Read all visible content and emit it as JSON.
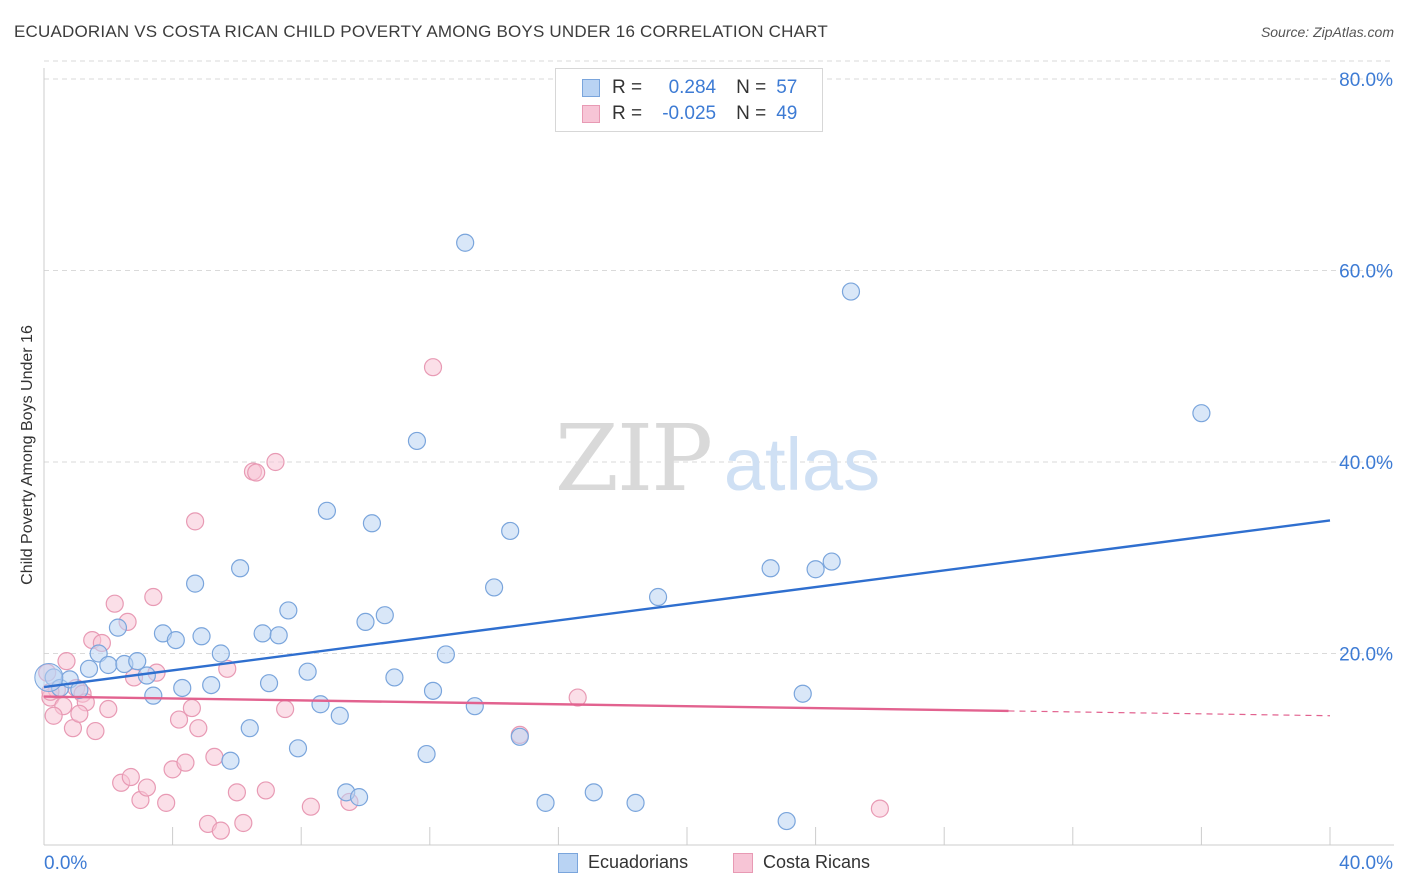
{
  "title": "ECUADORIAN VS COSTA RICAN CHILD POVERTY AMONG BOYS UNDER 16 CORRELATION CHART",
  "source": "Source: ZipAtlas.com",
  "watermark": {
    "zip": "ZIP",
    "atlas": "atlas"
  },
  "legend": {
    "rows": [
      {
        "r_label": "R =",
        "r_value": "0.284",
        "n_label": "N =",
        "n_value": "57"
      },
      {
        "r_label": "R =",
        "r_value": "-0.025",
        "n_label": "N =",
        "n_value": "49"
      }
    ]
  },
  "colors": {
    "blue_fill": "#b9d3f3",
    "blue_stroke": "#7aa5dc",
    "blue_line": "#2f6fcf",
    "pink_fill": "#f7c5d6",
    "pink_stroke": "#e89ab4",
    "pink_line": "#e2628f",
    "tick_label": "#3d7bd4",
    "grid": "#dadada"
  },
  "chart_data": {
    "type": "scatter",
    "title": "ECUADORIAN VS COSTA RICAN CHILD POVERTY AMONG BOYS UNDER 16 CORRELATION CHART",
    "xlabel": "",
    "ylabel": "Child Poverty Among Boys Under 16",
    "xlim": [
      0,
      40
    ],
    "ylim": [
      0,
      80
    ],
    "x_tick_labels": [
      "0.0%",
      "40.0%"
    ],
    "y_ticks": [
      20,
      40,
      60,
      80
    ],
    "y_tick_labels": [
      "20.0%",
      "40.0%",
      "60.0%",
      "80.0%"
    ],
    "legend_position": "bottom-center",
    "series": [
      {
        "name": "Ecuadorians",
        "r": 0.284,
        "n": 57,
        "trend": {
          "x0": 0,
          "y0": 16.5,
          "x1": 40,
          "y1": 33.9
        },
        "points": [
          [
            0.3,
            17.5
          ],
          [
            0.5,
            16.4
          ],
          [
            0.8,
            17.3
          ],
          [
            1.1,
            16.2
          ],
          [
            1.4,
            18.4
          ],
          [
            1.7,
            20.0
          ],
          [
            2.0,
            18.8
          ],
          [
            2.3,
            22.7
          ],
          [
            2.5,
            18.9
          ],
          [
            2.9,
            19.2
          ],
          [
            3.2,
            17.7
          ],
          [
            3.4,
            15.6
          ],
          [
            3.7,
            22.1
          ],
          [
            4.1,
            21.4
          ],
          [
            4.3,
            16.4
          ],
          [
            4.7,
            27.3
          ],
          [
            4.9,
            21.8
          ],
          [
            5.2,
            16.7
          ],
          [
            5.5,
            20.0
          ],
          [
            5.8,
            8.8
          ],
          [
            6.1,
            28.9
          ],
          [
            6.4,
            12.2
          ],
          [
            6.8,
            22.1
          ],
          [
            7.0,
            16.9
          ],
          [
            7.3,
            21.9
          ],
          [
            7.6,
            24.5
          ],
          [
            7.9,
            10.1
          ],
          [
            8.2,
            18.1
          ],
          [
            8.6,
            14.7
          ],
          [
            8.8,
            34.9
          ],
          [
            9.2,
            13.5
          ],
          [
            9.4,
            5.5
          ],
          [
            9.8,
            5.0
          ],
          [
            10.0,
            23.3
          ],
          [
            10.2,
            33.6
          ],
          [
            10.6,
            24.0
          ],
          [
            10.9,
            17.5
          ],
          [
            11.6,
            42.2
          ],
          [
            11.9,
            9.5
          ],
          [
            12.1,
            16.1
          ],
          [
            12.5,
            19.9
          ],
          [
            13.1,
            62.9
          ],
          [
            13.4,
            14.5
          ],
          [
            14.0,
            26.9
          ],
          [
            14.5,
            32.8
          ],
          [
            14.8,
            11.3
          ],
          [
            15.6,
            4.4
          ],
          [
            17.1,
            5.5
          ],
          [
            18.4,
            4.4
          ],
          [
            19.1,
            25.9
          ],
          [
            22.6,
            28.9
          ],
          [
            23.1,
            2.5
          ],
          [
            23.6,
            15.8
          ],
          [
            24.0,
            28.8
          ],
          [
            24.5,
            29.6
          ],
          [
            25.1,
            57.8
          ],
          [
            36.0,
            45.1
          ]
        ]
      },
      {
        "name": "Costa Ricans",
        "r": -0.025,
        "n": 49,
        "trend": {
          "x0": 0,
          "y0": 15.5,
          "x1": 30,
          "y1": 14.0,
          "dash_to_x": 40,
          "dash_to_y": 13.5
        },
        "points": [
          [
            0.1,
            18.0
          ],
          [
            0.2,
            15.4
          ],
          [
            0.4,
            16.2
          ],
          [
            0.6,
            14.5
          ],
          [
            0.7,
            19.2
          ],
          [
            0.9,
            12.2
          ],
          [
            1.0,
            16.4
          ],
          [
            1.2,
            15.8
          ],
          [
            1.3,
            14.9
          ],
          [
            1.5,
            21.4
          ],
          [
            1.6,
            11.9
          ],
          [
            1.8,
            21.1
          ],
          [
            2.0,
            14.2
          ],
          [
            2.2,
            25.2
          ],
          [
            2.4,
            6.5
          ],
          [
            2.6,
            23.3
          ],
          [
            2.8,
            17.5
          ],
          [
            3.0,
            4.7
          ],
          [
            3.2,
            6.0
          ],
          [
            3.4,
            25.9
          ],
          [
            3.5,
            18.0
          ],
          [
            3.8,
            4.4
          ],
          [
            4.0,
            7.9
          ],
          [
            4.2,
            13.1
          ],
          [
            4.4,
            8.6
          ],
          [
            4.6,
            14.3
          ],
          [
            4.8,
            12.2
          ],
          [
            5.1,
            2.2
          ],
          [
            5.3,
            9.2
          ],
          [
            5.5,
            1.5
          ],
          [
            5.7,
            18.4
          ],
          [
            6.0,
            5.5
          ],
          [
            6.2,
            2.3
          ],
          [
            6.5,
            39.0
          ],
          [
            6.6,
            38.9
          ],
          [
            6.9,
            5.7
          ],
          [
            7.2,
            40.0
          ],
          [
            7.5,
            14.2
          ],
          [
            8.3,
            4.0
          ],
          [
            9.5,
            4.5
          ],
          [
            12.1,
            49.9
          ],
          [
            14.8,
            11.5
          ],
          [
            16.6,
            15.4
          ],
          [
            26.0,
            3.8
          ],
          [
            0.3,
            13.5
          ],
          [
            1.1,
            13.7
          ],
          [
            4.7,
            33.8
          ],
          [
            2.7,
            7.1
          ],
          [
            0.2,
            16.0
          ]
        ]
      }
    ]
  }
}
